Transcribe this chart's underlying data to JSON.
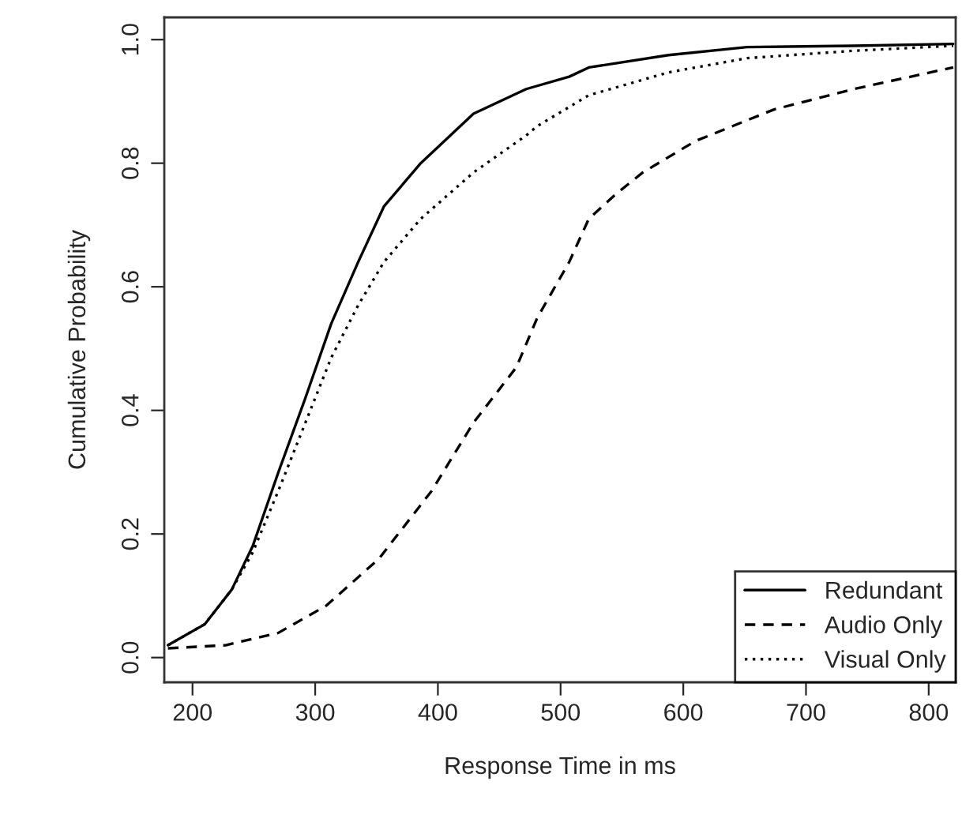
{
  "chart_data": {
    "type": "line",
    "xlabel": "Response Time in ms",
    "ylabel": "Cumulative Probability",
    "xlim": [
      177,
      822
    ],
    "ylim": [
      -0.04,
      1.036
    ],
    "xticks": [
      200,
      300,
      400,
      500,
      600,
      700,
      800
    ],
    "yticks": [
      {
        "value": 0,
        "label": "0.0"
      },
      {
        "value": 0.2,
        "label": "0.2"
      },
      {
        "value": 0.4,
        "label": "0.4"
      },
      {
        "value": 0.6,
        "label": "0.6"
      },
      {
        "value": 0.8,
        "label": "0.8"
      },
      {
        "value": 1,
        "label": "1.0"
      }
    ],
    "grid": false,
    "legend": "bottom right",
    "series": [
      {
        "name": "Redundant",
        "color": "#000000",
        "line_style": "solid",
        "x": [
          180,
          210,
          232,
          249,
          270,
          292,
          313,
          335,
          356,
          386,
          429,
          472,
          507,
          523,
          588,
          652,
          739,
          820
        ],
        "values": [
          0.02,
          0.054,
          0.11,
          0.18,
          0.3,
          0.42,
          0.54,
          0.64,
          0.73,
          0.8,
          0.88,
          0.92,
          0.94,
          0.955,
          0.975,
          0.988,
          0.99,
          0.993
        ]
      },
      {
        "name": "Audio Only",
        "color": "#000000",
        "line_style": "dashed",
        "x": [
          180,
          227,
          270,
          309,
          352,
          395,
          429,
          464,
          481,
          507,
          523,
          545,
          567,
          610,
          674,
          739,
          820
        ],
        "values": [
          0.015,
          0.02,
          0.04,
          0.084,
          0.16,
          0.27,
          0.38,
          0.47,
          0.55,
          0.64,
          0.71,
          0.75,
          0.785,
          0.836,
          0.887,
          0.92,
          0.955
        ]
      },
      {
        "name": "Visual Only",
        "color": "#000000",
        "line_style": "dotted",
        "x": [
          180,
          210,
          232,
          249,
          270,
          292,
          313,
          335,
          356,
          386,
          429,
          472,
          481,
          523,
          588,
          652,
          739,
          820
        ],
        "values": [
          0.02,
          0.054,
          0.11,
          0.17,
          0.27,
          0.38,
          0.485,
          0.57,
          0.64,
          0.71,
          0.785,
          0.845,
          0.86,
          0.91,
          0.947,
          0.97,
          0.982,
          0.99
        ]
      }
    ]
  }
}
